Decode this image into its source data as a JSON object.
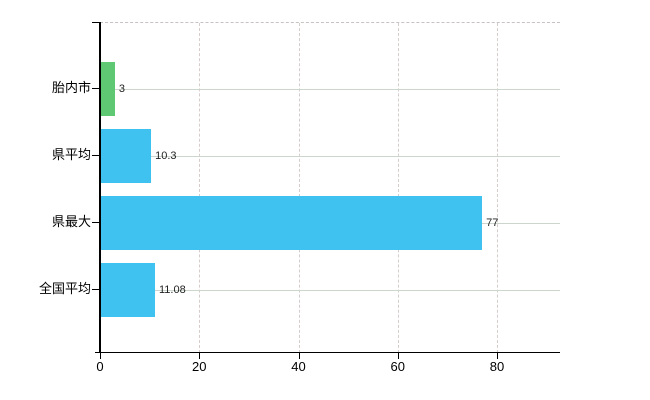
{
  "chart_data": {
    "type": "bar",
    "orientation": "horizontal",
    "title": "",
    "xlabel": "",
    "ylabel": "",
    "categories": [
      "胎内市",
      "県平均",
      "県最大",
      "全国平均"
    ],
    "values": [
      3,
      10.3,
      77,
      11.08
    ],
    "value_labels": [
      "3",
      "10.3",
      "77",
      "11.08"
    ],
    "bar_colors": [
      "#5ec873",
      "#3fc2ef",
      "#3fc2ef",
      "#3fc2ef"
    ],
    "x_ticks": [
      "0",
      "20",
      "40",
      "60",
      "80"
    ],
    "x_tick_values": [
      0,
      20,
      40,
      60,
      80
    ],
    "xlim": [
      0,
      92.7
    ],
    "grid": {
      "vertical": "dashed",
      "horizontal_category_lines": true,
      "top_border": "dashed"
    },
    "legend": "none"
  },
  "colors": {
    "background": "#ffffff",
    "bar_green": "#5ec873",
    "bar_blue": "#3fc2ef",
    "axis": "#000000",
    "grid_vertical": "#d6cccc",
    "grid_horizontal": "#ccd6cc",
    "top_border": "#c9c2c2",
    "text": "#222222"
  }
}
